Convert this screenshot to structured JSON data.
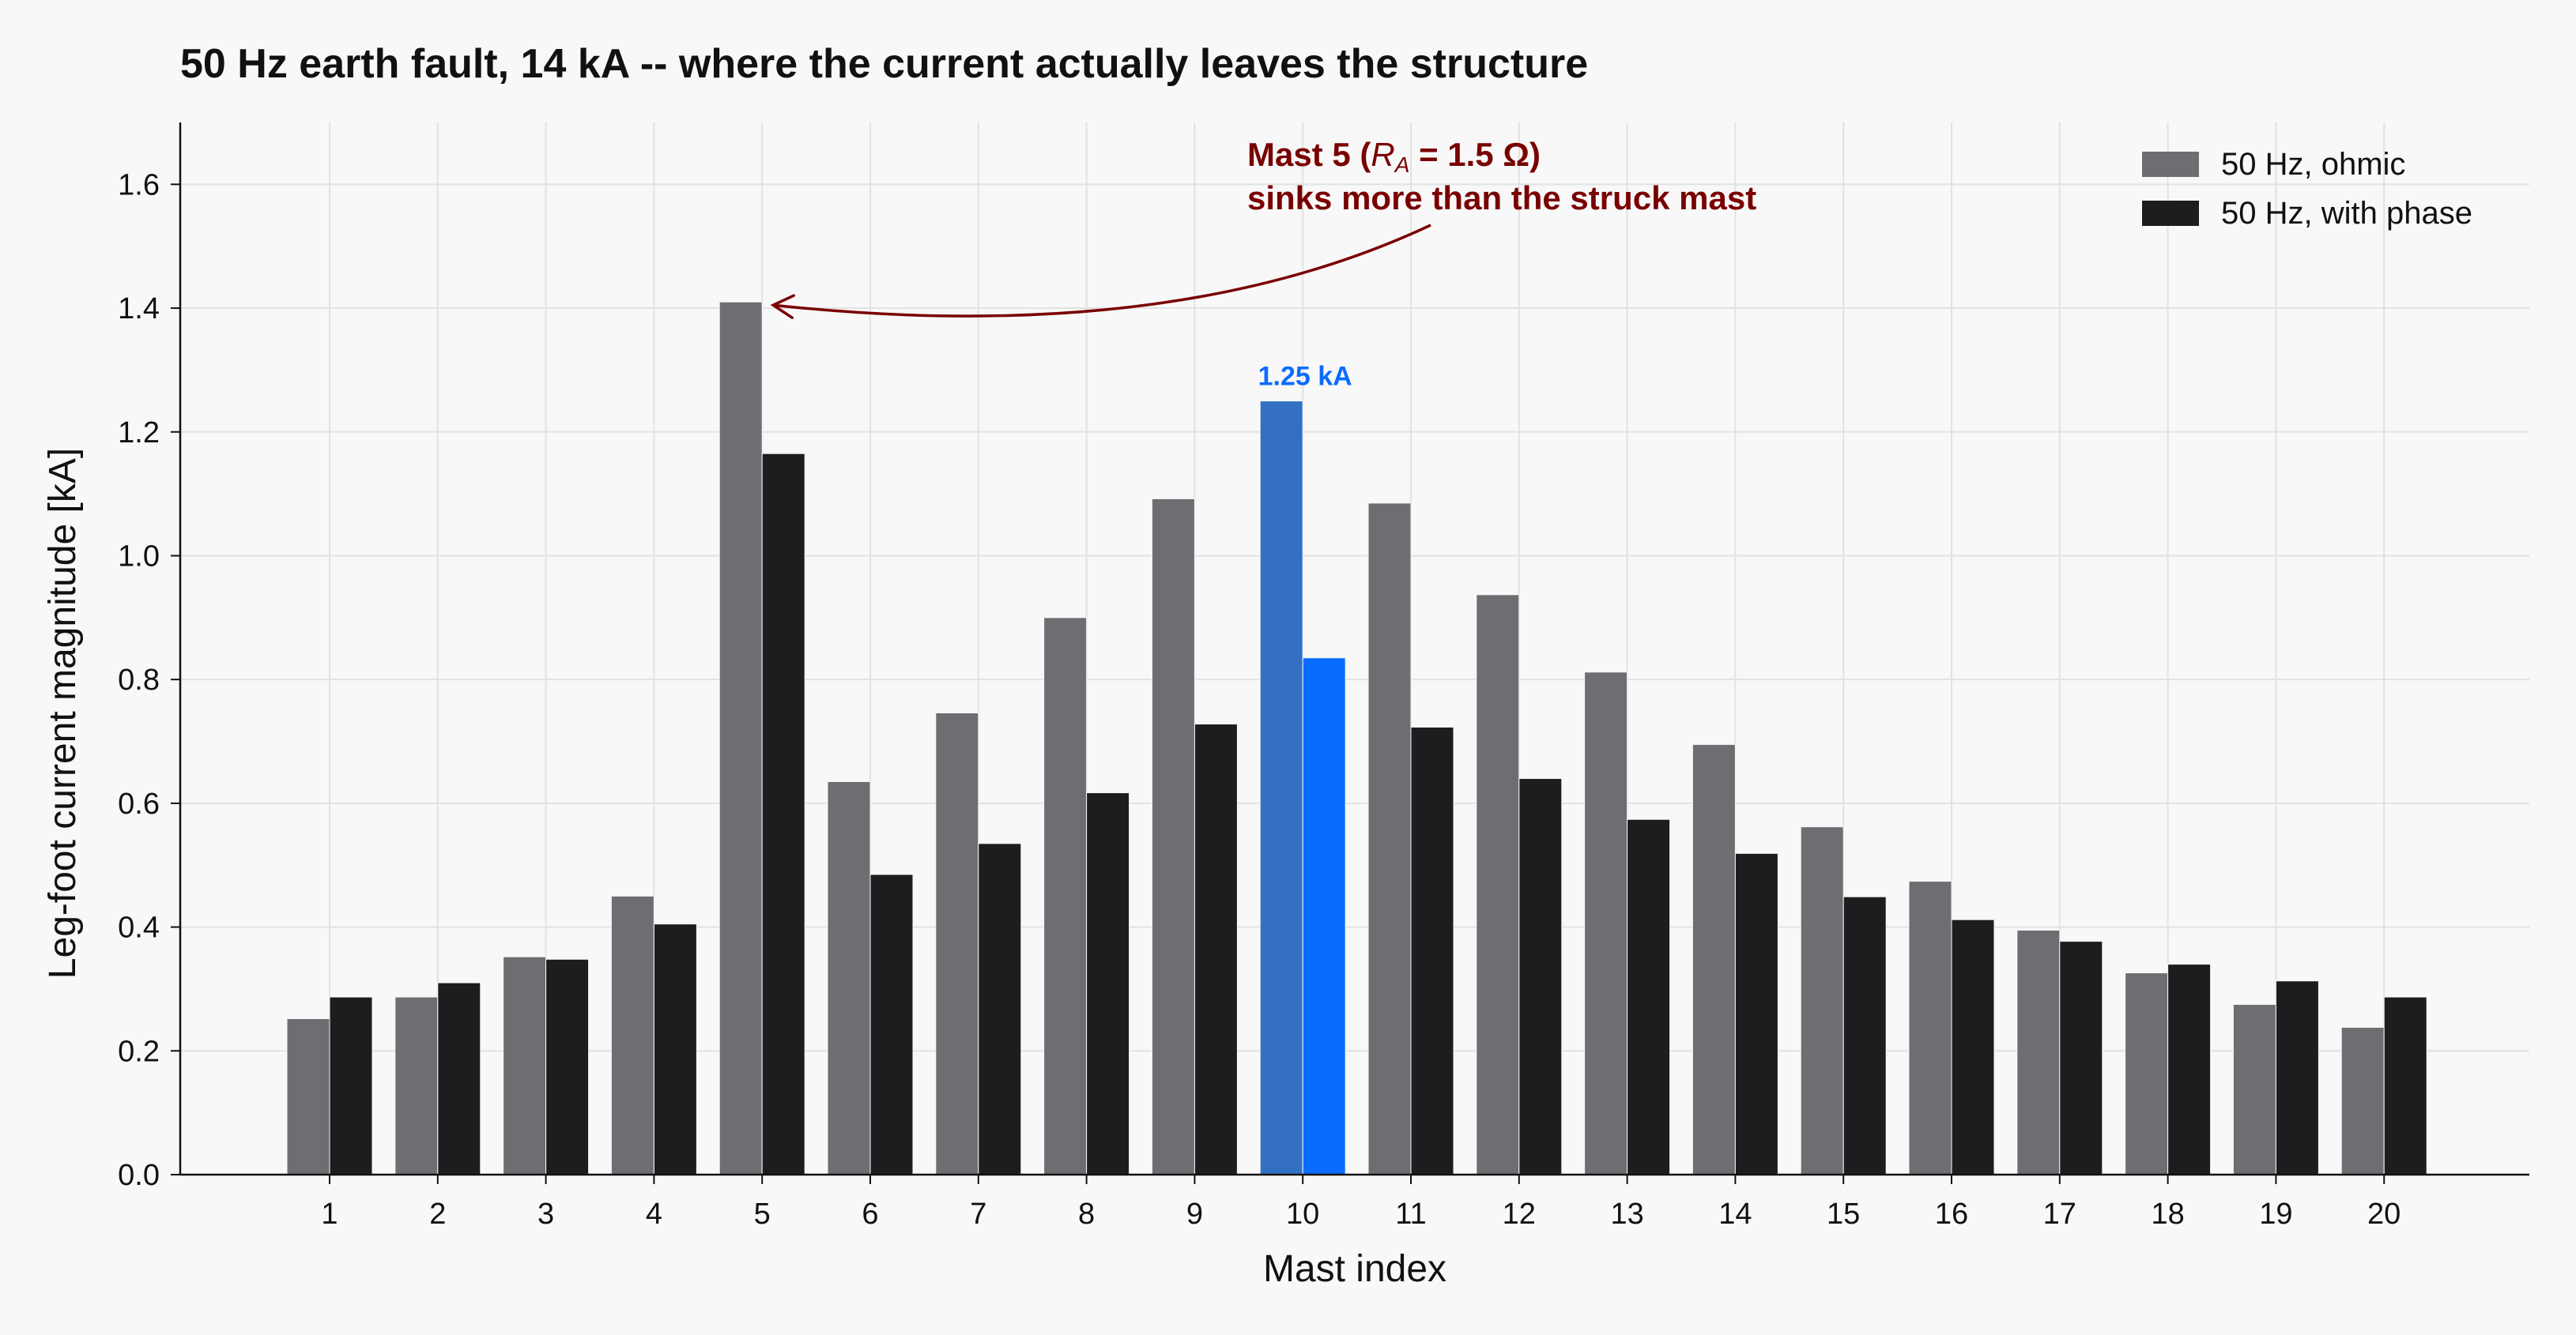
{
  "chart_data": {
    "type": "bar",
    "title": "50 Hz earth fault, 14 kA -- where the current actually leaves the structure",
    "xlabel": "Mast index",
    "ylabel": "Leg-foot current magnitude  [kA]",
    "ylim": [
      0,
      1.7
    ],
    "yticks": [
      "0.0",
      "0.2",
      "0.4",
      "0.6",
      "0.8",
      "1.0",
      "1.2",
      "1.4",
      "1.6"
    ],
    "grid": true,
    "legend_position": "top-right",
    "categories": [
      "1",
      "2",
      "3",
      "4",
      "5",
      "6",
      "7",
      "8",
      "9",
      "10",
      "11",
      "12",
      "13",
      "14",
      "15",
      "16",
      "17",
      "18",
      "19",
      "20"
    ],
    "series": [
      {
        "name": "50 Hz, ohmic",
        "color": "#6e6e72",
        "values": [
          0.252,
          0.287,
          0.352,
          0.45,
          1.41,
          0.635,
          0.746,
          0.9,
          1.092,
          1.25,
          1.085,
          0.937,
          0.812,
          0.695,
          0.562,
          0.474,
          0.395,
          0.326,
          0.275,
          0.238
        ]
      },
      {
        "name": "50 Hz, with phase",
        "color": "#1d1d1f",
        "values": [
          0.287,
          0.31,
          0.348,
          0.405,
          1.165,
          0.485,
          0.535,
          0.617,
          0.728,
          0.835,
          0.723,
          0.64,
          0.574,
          0.519,
          0.449,
          0.412,
          0.377,
          0.34,
          0.313,
          0.287
        ]
      }
    ],
    "highlight": {
      "category": "10",
      "colors": [
        "#3370c4",
        "#0a6cff"
      ],
      "label": "1.25 kA",
      "label_color": "#0a6cff"
    },
    "annotation": {
      "line1_prefix": "Mast 5 (",
      "line1_var": "R",
      "line1_sub": "A",
      "line1_suffix": " = 1.5 Ω)",
      "line2": "sinks more than the struck mast",
      "color": "#7a0000",
      "points_to_category": "5"
    }
  }
}
